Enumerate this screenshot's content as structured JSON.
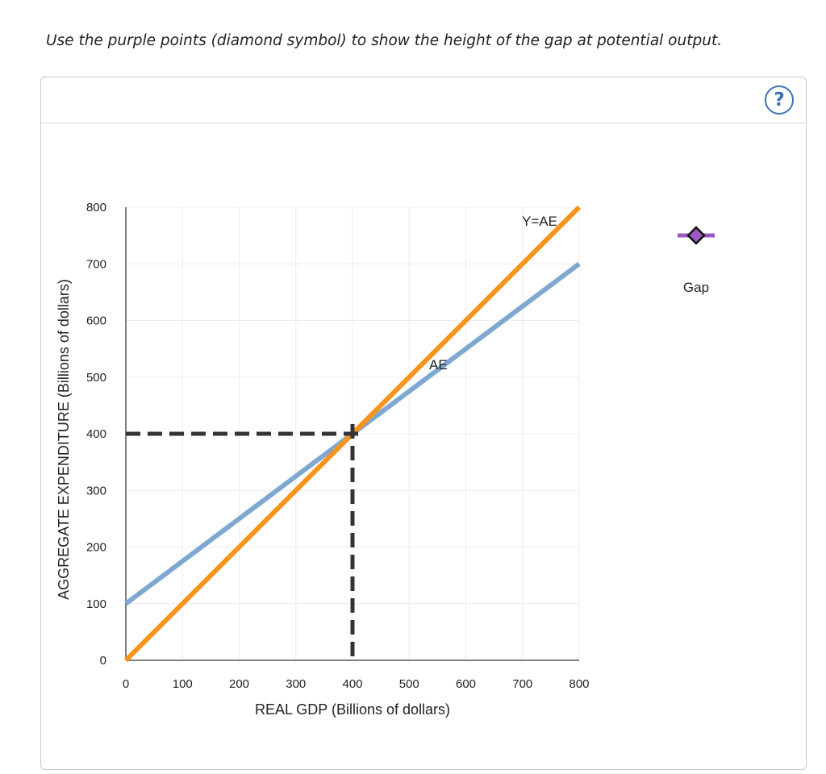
{
  "instruction": "Use the purple points (diamond symbol) to show the height of the gap at potential output.",
  "help_button": {
    "label": "?"
  },
  "colors": {
    "ye_line": "#f7941d",
    "ae_line": "#7fa8d0",
    "dashed": "#333333",
    "gap_marker": "#9b59c4",
    "help": "#3d6fb4"
  },
  "chart_data": {
    "type": "line",
    "xlabel": "REAL GDP (Billions of dollars)",
    "ylabel": "AGGREGATE EXPENDITURE (Billions of dollars)",
    "xlim": [
      0,
      800
    ],
    "ylim": [
      0,
      800
    ],
    "xticks": [
      "0",
      "100",
      "200",
      "300",
      "400",
      "500",
      "600",
      "700",
      "800"
    ],
    "yticks": [
      "0",
      "100",
      "200",
      "300",
      "400",
      "500",
      "600",
      "700",
      "800"
    ],
    "grid": true,
    "series": [
      {
        "name": "Y=AE",
        "x": [
          0,
          800
        ],
        "y": [
          0,
          800
        ]
      },
      {
        "name": "AE",
        "x": [
          0,
          800
        ],
        "y": [
          100,
          700
        ]
      }
    ],
    "dashed_guides": {
      "x": 400,
      "y": 400
    },
    "legend": {
      "tool": "Gap",
      "marker": "diamond",
      "placement": "right"
    }
  }
}
